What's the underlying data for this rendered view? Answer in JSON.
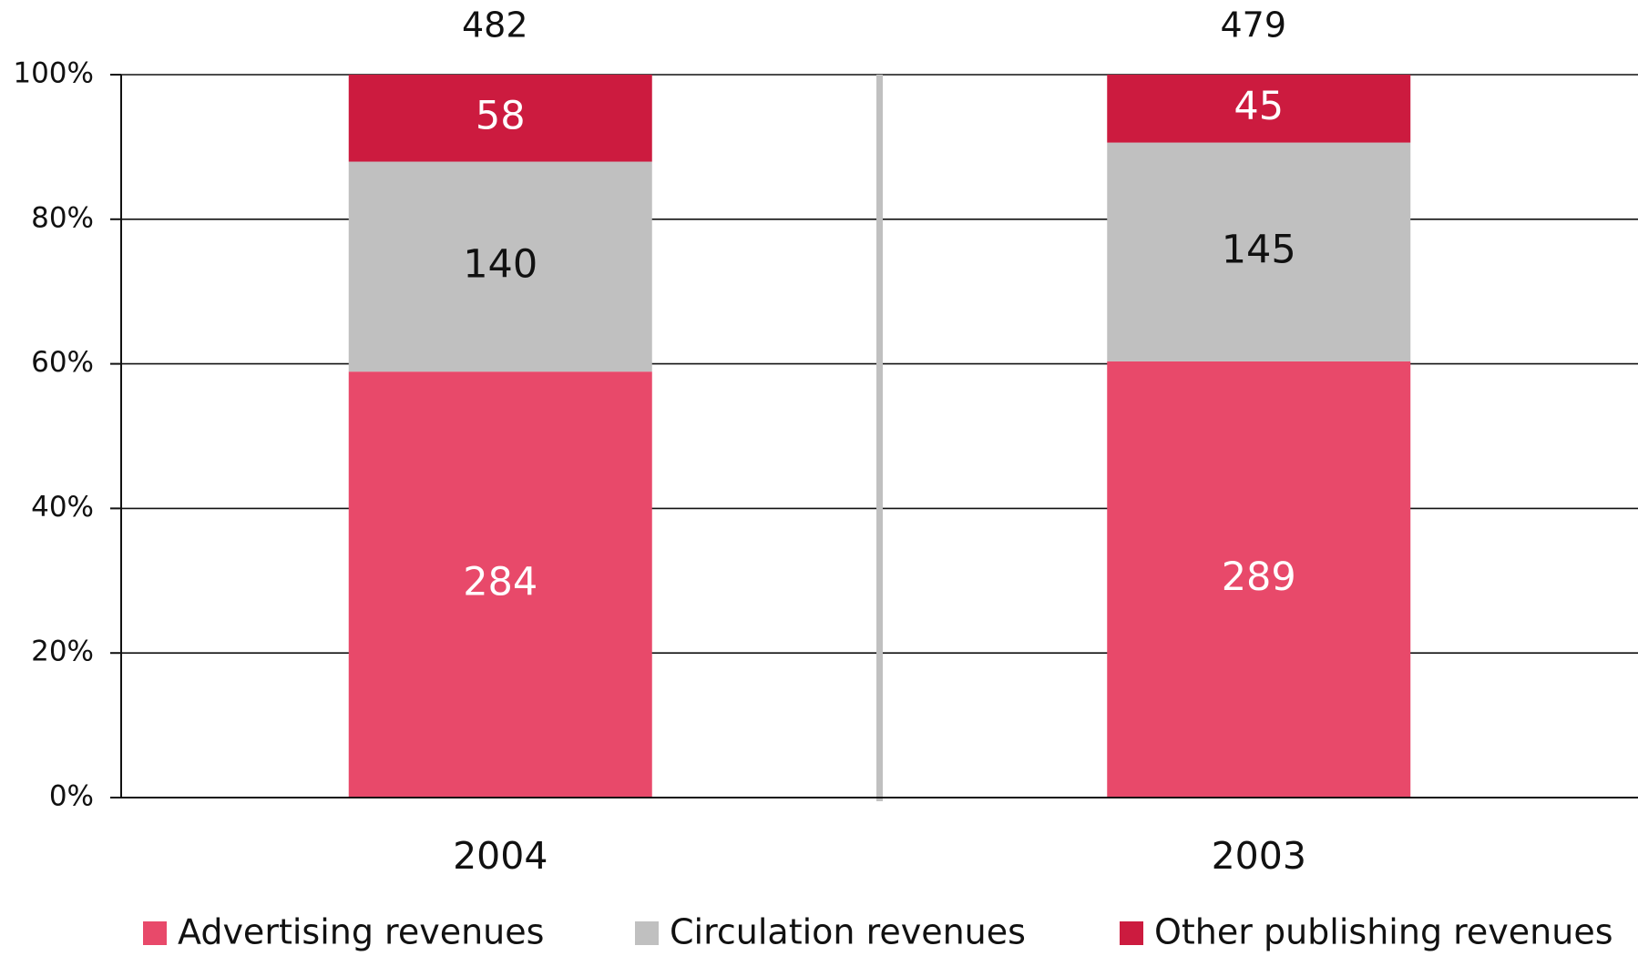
{
  "chart_data": {
    "type": "stacked_bar_percent",
    "categories": [
      "2004",
      "2003"
    ],
    "totals": [
      482,
      479
    ],
    "series": [
      {
        "name": "Advertising revenues",
        "color": "#e8496a",
        "values": [
          284,
          289
        ]
      },
      {
        "name": "Circulation revenues",
        "color": "#c0c0c0",
        "values": [
          140,
          145
        ]
      },
      {
        "name": "Other publishing revenues",
        "color": "#cc1b3f",
        "values": [
          58,
          45
        ]
      }
    ],
    "ylim": [
      0,
      100
    ],
    "yticks": [
      {
        "value": 0,
        "label": "0%"
      },
      {
        "value": 20,
        "label": "20%"
      },
      {
        "value": 40,
        "label": "40%"
      },
      {
        "value": 60,
        "label": "60%"
      },
      {
        "value": 80,
        "label": "80%"
      },
      {
        "value": 100,
        "label": "100%"
      }
    ],
    "grid": true,
    "legend": "bottom"
  }
}
